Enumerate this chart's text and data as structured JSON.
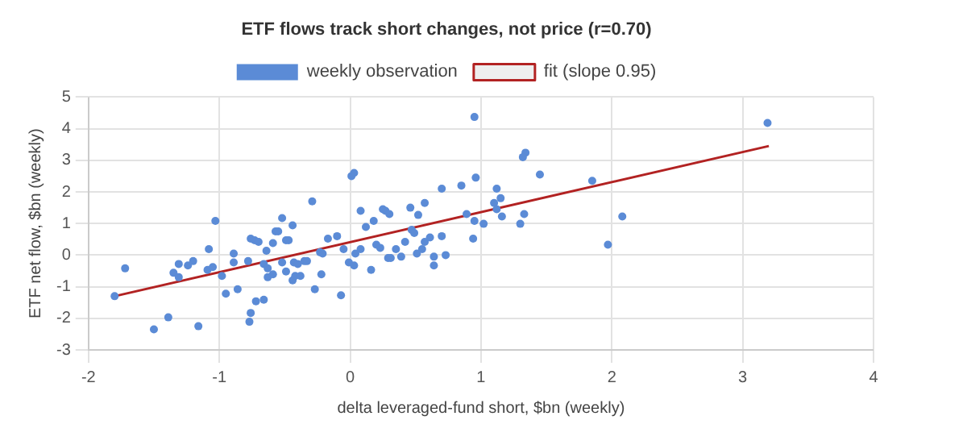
{
  "chart_data": {
    "type": "scatter",
    "title": "ETF flows track short changes, not price (r=0.70)",
    "xlabel": "delta leveraged-fund short, $bn (weekly)",
    "ylabel": "ETF net flow, $bn (weekly)",
    "xlim": [
      -2,
      4
    ],
    "xticks": [
      -2,
      -1,
      0,
      1,
      2,
      3,
      4
    ],
    "ylim": [
      -3,
      5
    ],
    "yticks": [
      -3,
      -2,
      -1,
      0,
      1,
      2,
      3,
      4,
      5
    ],
    "grid": true,
    "legend": "top",
    "series": [
      {
        "name": "weekly observation",
        "marker": "circle",
        "color": "#5b8bd6",
        "x": [
          0.95,
          1.34,
          1.32,
          1.45,
          0.03,
          0.01,
          0.96,
          0.7,
          0.85,
          1.12,
          -0.29,
          -1.03,
          1.15,
          1.1,
          1.12,
          0.46,
          0.57,
          0.52,
          0.08,
          0.27,
          0.25,
          0.3,
          -0.52,
          -0.44,
          0.89,
          0.95,
          1.02,
          1.16,
          1.33,
          1.3,
          0.12,
          0.18,
          -0.57,
          -0.55,
          0.47,
          0.49,
          0.42,
          0.57,
          0.61,
          0.7,
          0.94,
          -0.17,
          -0.1,
          -0.76,
          -0.73,
          -0.7,
          -0.49,
          -0.47,
          -0.59,
          3.19,
          1.85,
          2.08,
          1.97,
          -1.72,
          -1.8,
          -1.5,
          -1.39,
          -1.16,
          -1.31,
          -1.35,
          -1.31,
          -1.24,
          -1.2,
          -1.08,
          -1.09,
          -1.05,
          -0.98,
          -0.95,
          -0.86,
          -0.89,
          -0.89,
          -0.78,
          -0.72,
          -0.66,
          -0.76,
          -0.77,
          -0.66,
          -0.64,
          -0.63,
          -0.59,
          -0.63,
          -0.52,
          -0.49,
          -0.43,
          -0.44,
          -0.42,
          -0.38,
          -0.4,
          -0.35,
          -0.33,
          -0.27,
          -0.22,
          -0.23,
          -0.21,
          -0.07,
          -0.05,
          -0.01,
          0.03,
          0.04,
          0.08,
          0.16,
          0.23,
          0.2,
          0.29,
          0.31,
          0.35,
          0.39,
          0.51,
          0.55,
          0.64,
          0.64,
          0.73
        ],
        "values": [
          4.37,
          3.24,
          3.1,
          2.55,
          2.6,
          2.5,
          2.45,
          2.1,
          2.2,
          2.1,
          1.7,
          1.08,
          1.8,
          1.65,
          1.45,
          1.5,
          1.65,
          1.27,
          1.4,
          1.4,
          1.45,
          1.3,
          1.17,
          0.94,
          1.3,
          1.08,
          0.99,
          1.22,
          1.3,
          0.99,
          0.89,
          1.08,
          0.75,
          0.75,
          0.8,
          0.7,
          0.42,
          0.42,
          0.56,
          0.6,
          0.52,
          0.52,
          0.6,
          0.52,
          0.47,
          0.42,
          0.47,
          0.47,
          0.38,
          4.18,
          2.35,
          1.22,
          0.33,
          -0.42,
          -1.3,
          -2.35,
          -1.97,
          -2.25,
          -0.28,
          -0.56,
          -0.7,
          -0.33,
          -0.19,
          0.19,
          -0.47,
          -0.38,
          -0.66,
          -1.22,
          -1.08,
          0.05,
          -0.23,
          -0.19,
          -1.46,
          -1.41,
          -1.83,
          -2.11,
          -0.28,
          0.14,
          -0.7,
          -0.61,
          -0.42,
          -0.23,
          -0.52,
          -0.23,
          -0.8,
          -0.66,
          -0.66,
          -0.28,
          -0.19,
          -0.19,
          -1.08,
          -0.61,
          0.09,
          0.05,
          -1.27,
          0.19,
          -0.23,
          -0.33,
          0.05,
          0.19,
          -0.47,
          0.23,
          0.33,
          -0.09,
          -0.09,
          0.19,
          -0.05,
          0.05,
          0.19,
          -0.05,
          -0.33,
          0.0
        ]
      },
      {
        "name": "fit (slope 0.95)",
        "type": "line",
        "marker": "none",
        "color": "#b22222",
        "x": [
          -1.8,
          3.2
        ],
        "values": [
          -1.3,
          3.45
        ]
      }
    ]
  }
}
